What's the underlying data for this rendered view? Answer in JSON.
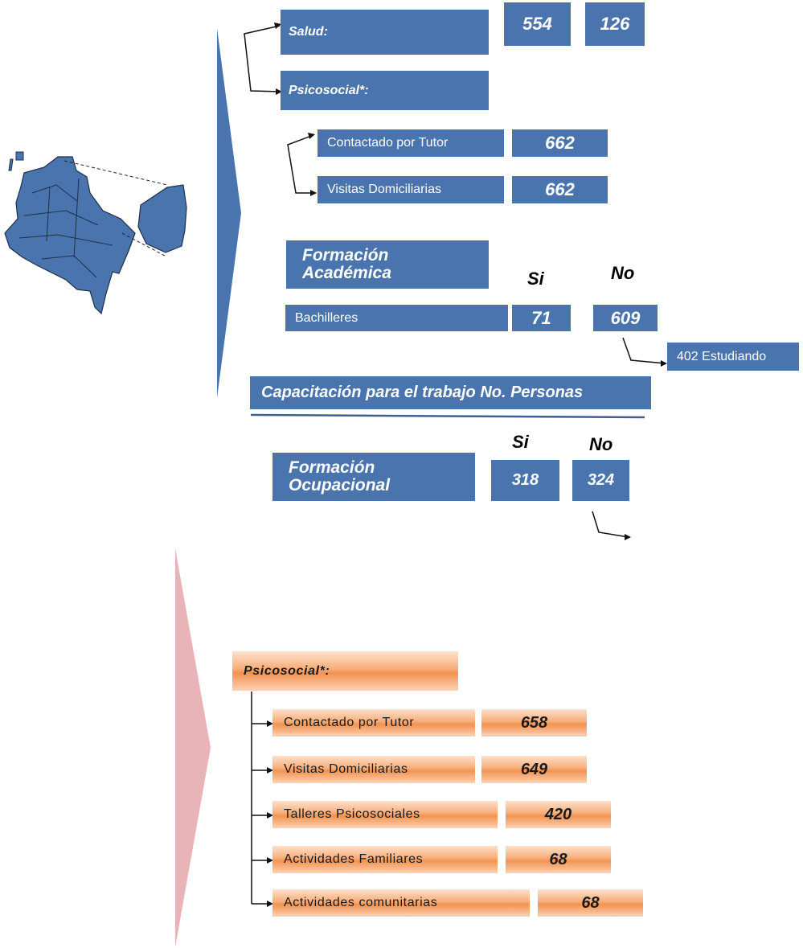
{
  "colors": {
    "blue": "#4a74ae",
    "orange": "#f3924f",
    "pink_arrow": "#e8b4b8"
  },
  "top": {
    "salud": {
      "label": "Salud:",
      "values": [
        "554",
        "126"
      ]
    },
    "psicosocial": {
      "label": "Psicosocial*:",
      "items": [
        {
          "label": "Contactado por Tutor",
          "value": "662"
        },
        {
          "label": "Visitas Domiciliarias",
          "value": "662"
        }
      ]
    },
    "formacion_academica": {
      "title_line1": "Formación",
      "title_line2": "Académica",
      "si": "Si",
      "no": "No",
      "row_label": "Bachilleres",
      "si_value": "71",
      "no_value": "609",
      "note": "402 Estudiando"
    },
    "capacitacion": {
      "header": "Capacitación para el trabajo  No. Personas"
    },
    "formacion_ocupacional": {
      "title_line1": "Formación",
      "title_line2": "Ocupacional",
      "si": "Si",
      "no": "No",
      "si_value": "318",
      "no_value": "324"
    }
  },
  "bottom": {
    "psicosocial": {
      "label": "Psicosocial*:",
      "items": [
        {
          "label": "Contactado por Tutor",
          "value": "658"
        },
        {
          "label": "Visitas Domiciliarias",
          "value": "649"
        },
        {
          "label": "Talleres Psicosociales",
          "value": "420"
        },
        {
          "label": "Actividades Familiares",
          "value": "68"
        },
        {
          "label": "Actividades comunitarias",
          "value": "68"
        }
      ]
    }
  },
  "icons": {
    "map": "colombia-map-icon"
  }
}
